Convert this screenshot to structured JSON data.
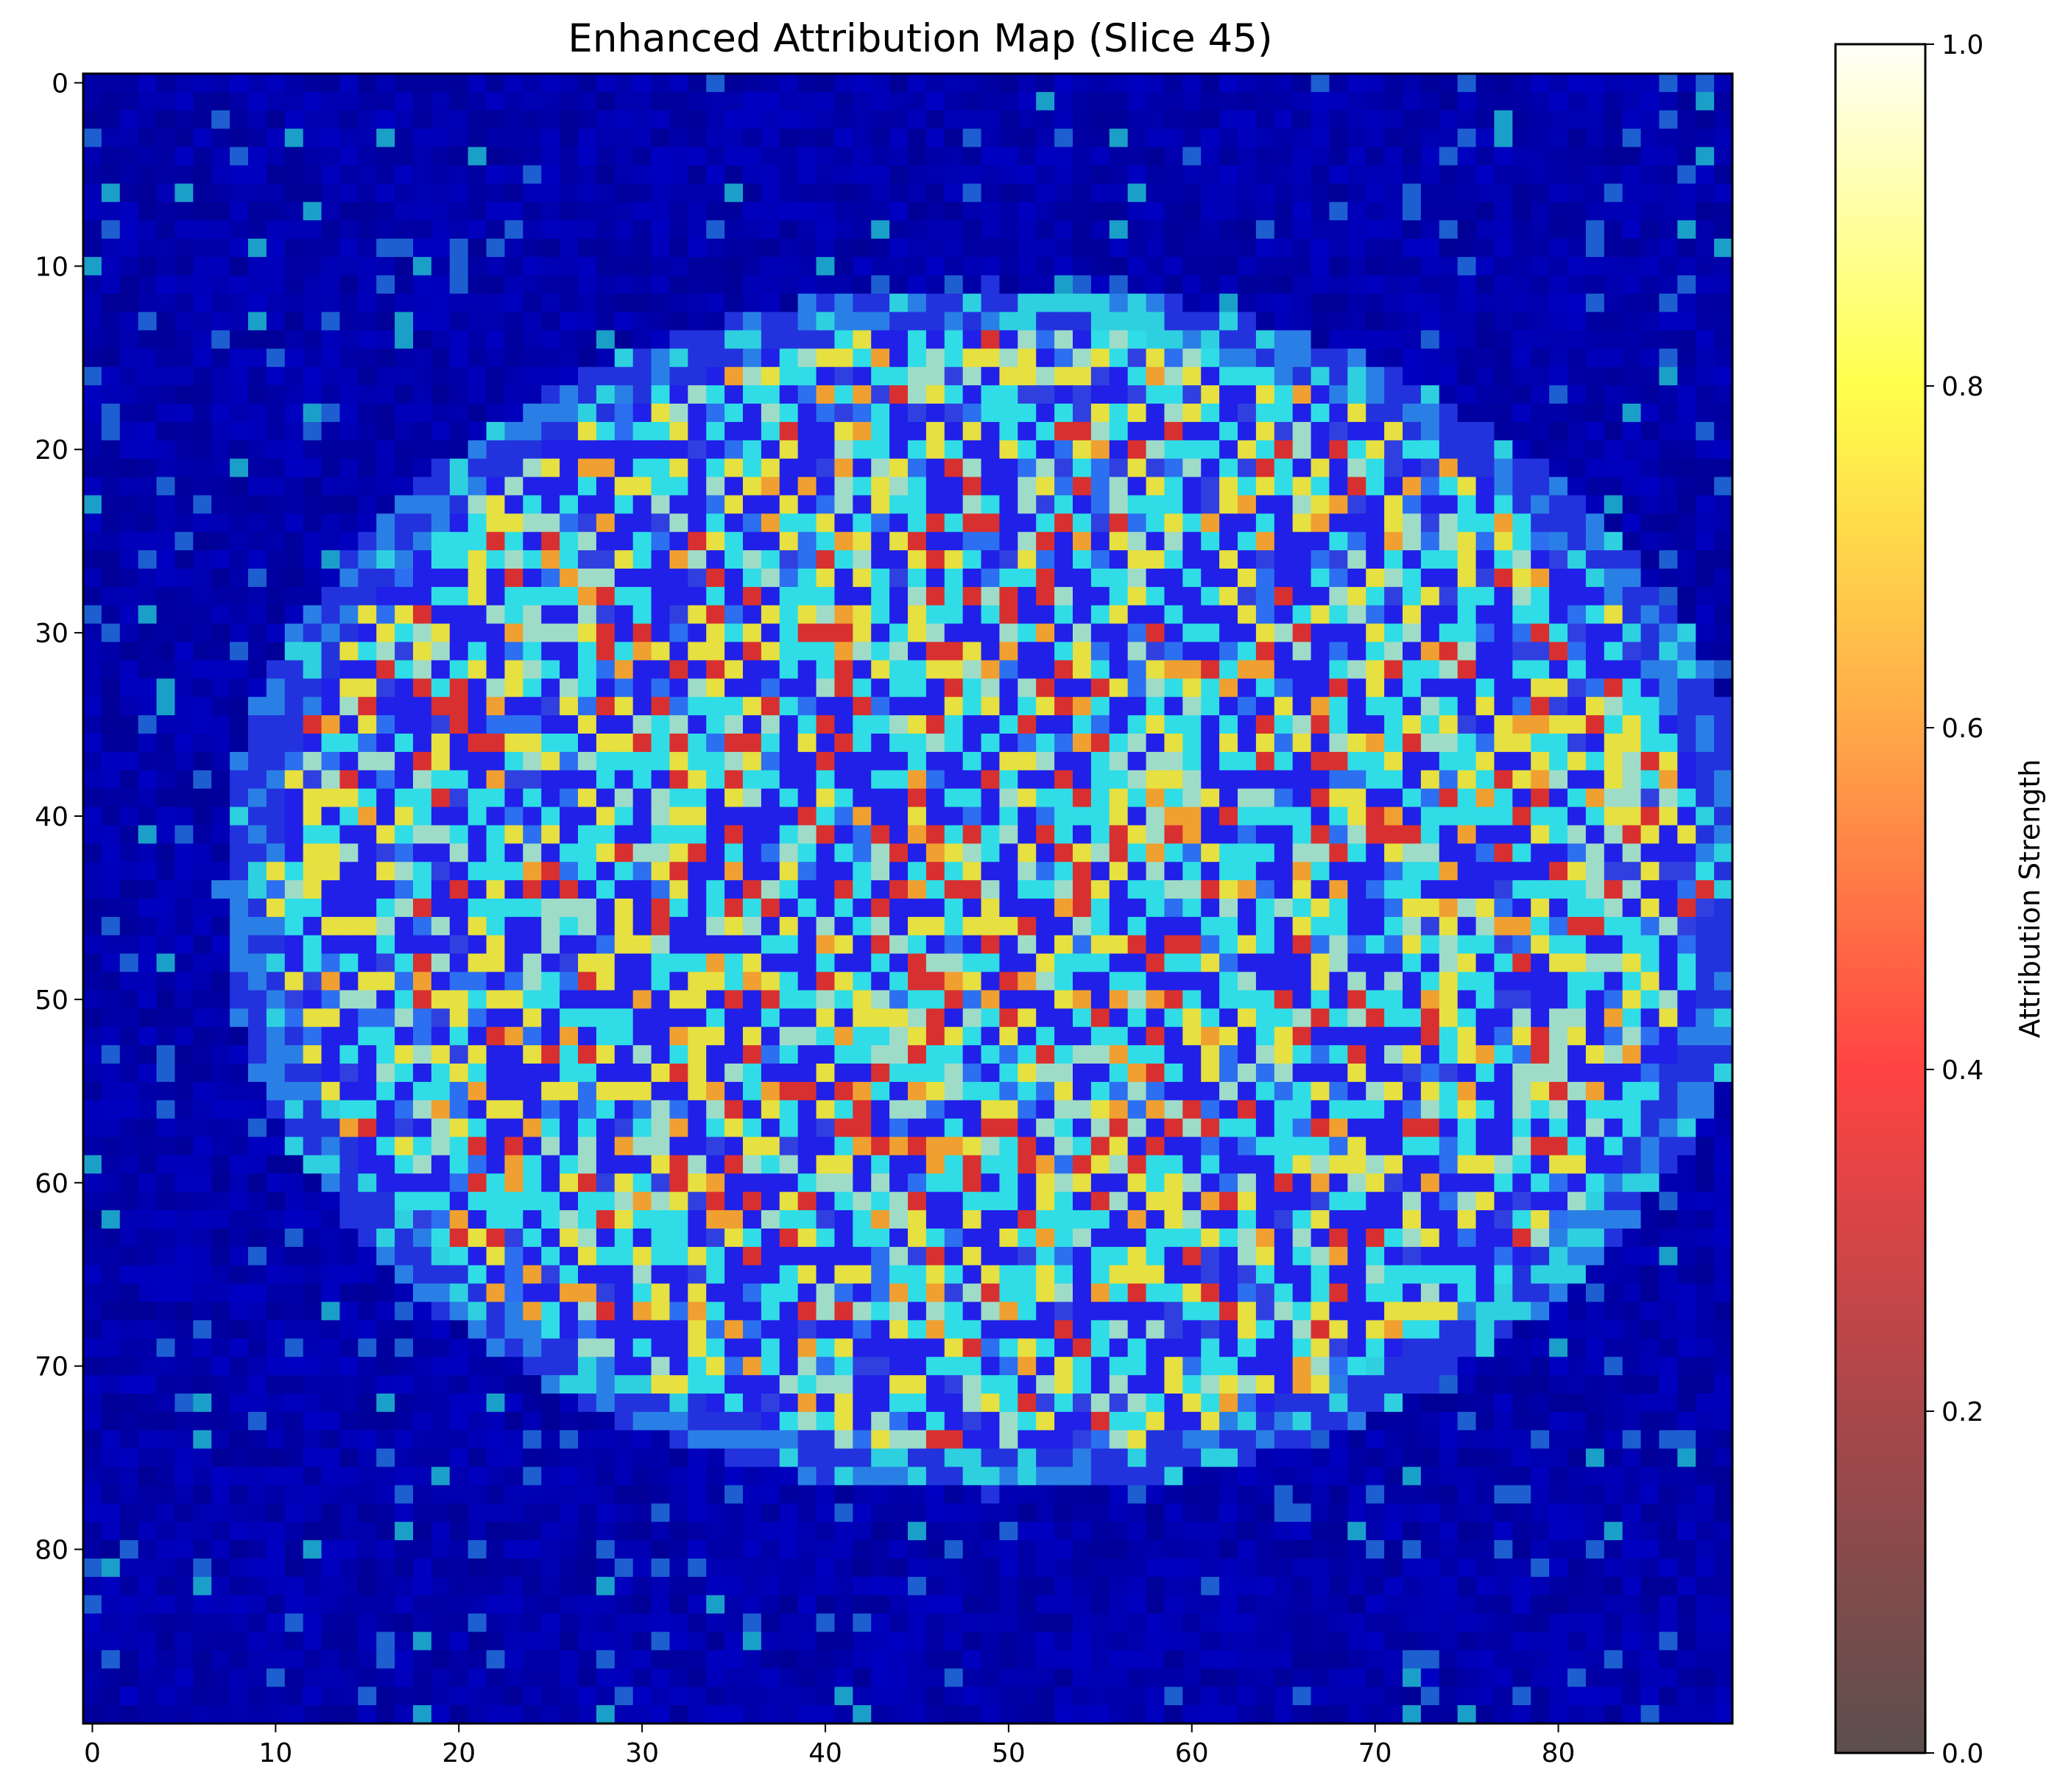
{
  "chart_data": {
    "type": "heatmap",
    "title": "Enhanced Attribution Map (Slice 45)",
    "xlabel": "",
    "ylabel": "",
    "grid_size": [
      90,
      90
    ],
    "x_ticks": [
      0,
      10,
      20,
      30,
      40,
      50,
      60,
      70,
      80
    ],
    "y_ticks": [
      0,
      10,
      20,
      30,
      40,
      50,
      60,
      70,
      80
    ],
    "xlim": [
      -0.5,
      89.5
    ],
    "ylim": [
      89.5,
      -0.5
    ],
    "grid": false,
    "base_colormap": "jet",
    "overlay_colormap": "hot",
    "region": {
      "shape": "ellipse",
      "center_col": 49,
      "center_row": 44,
      "radius_col": 42,
      "radius_row": 33
    },
    "colorbar": {
      "label": "Attribution Strength",
      "range": [
        0.0,
        1.0
      ],
      "ticks": [
        "0.0",
        "0.2",
        "0.4",
        "0.6",
        "0.8",
        "1.0"
      ],
      "position": "right"
    }
  }
}
